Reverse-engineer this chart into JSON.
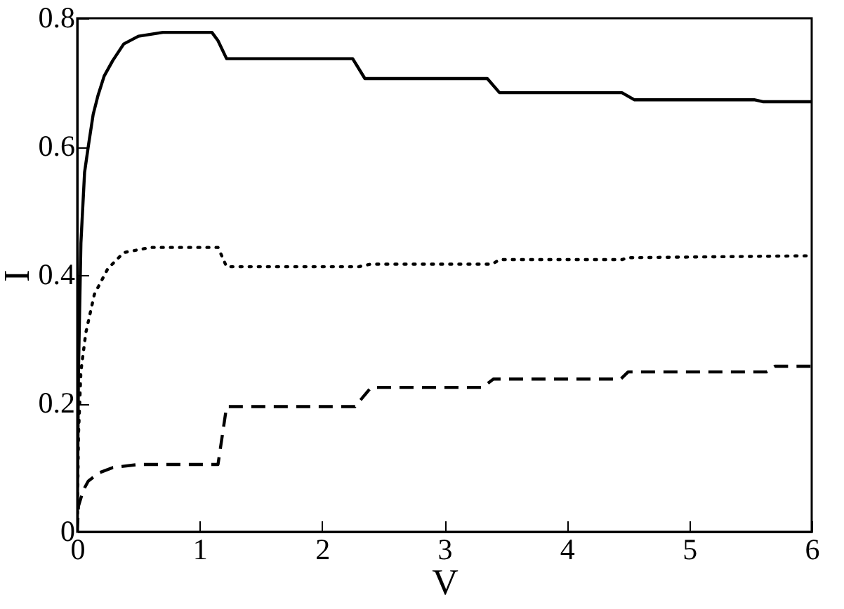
{
  "chart_data": {
    "type": "line",
    "xlabel": "V",
    "ylabel": "I",
    "xlim": [
      0,
      6
    ],
    "ylim": [
      0,
      0.8
    ],
    "xticks": [
      0,
      1,
      2,
      3,
      4,
      5,
      6
    ],
    "yticks": [
      0,
      0.2,
      0.4,
      0.6,
      0.8
    ],
    "series": [
      {
        "color": "#000000",
        "line_style": "solid",
        "x": [
          0,
          0.01,
          0.03,
          0.06,
          0.09,
          0.13,
          0.17,
          0.22,
          0.29,
          0.38,
          0.5,
          0.7,
          1.1,
          1.15,
          1.22,
          2.25,
          2.35,
          3.35,
          3.45,
          4.45,
          4.55,
          5.53,
          5.6,
          6
        ],
        "values": [
          0,
          0.25,
          0.45,
          0.56,
          0.6,
          0.65,
          0.68,
          0.71,
          0.734,
          0.76,
          0.772,
          0.778,
          0.778,
          0.765,
          0.737,
          0.737,
          0.706,
          0.706,
          0.684,
          0.684,
          0.673,
          0.673,
          0.67,
          0.67
        ]
      },
      {
        "color": "#000000",
        "line_style": "dotted",
        "x": [
          0,
          0.01,
          0.03,
          0.07,
          0.14,
          0.25,
          0.38,
          0.6,
          1.15,
          1.22,
          2.3,
          2.4,
          3.39,
          3.45,
          4.45,
          4.5,
          6
        ],
        "values": [
          0,
          0.15,
          0.25,
          0.31,
          0.37,
          0.41,
          0.435,
          0.443,
          0.443,
          0.413,
          0.413,
          0.417,
          0.417,
          0.424,
          0.424,
          0.427,
          0.43
        ]
      },
      {
        "color": "#000000",
        "line_style": "dashed",
        "x": [
          0,
          0.01,
          0.05,
          0.09,
          0.18,
          0.29,
          0.5,
          1.15,
          1.22,
          2.27,
          2.4,
          3.31,
          3.4,
          4.44,
          4.5,
          5.63,
          5.7,
          6
        ],
        "values": [
          0,
          0.04,
          0.065,
          0.079,
          0.092,
          0.1,
          0.105,
          0.105,
          0.195,
          0.195,
          0.225,
          0.225,
          0.238,
          0.238,
          0.249,
          0.249,
          0.258,
          0.258
        ]
      }
    ]
  }
}
